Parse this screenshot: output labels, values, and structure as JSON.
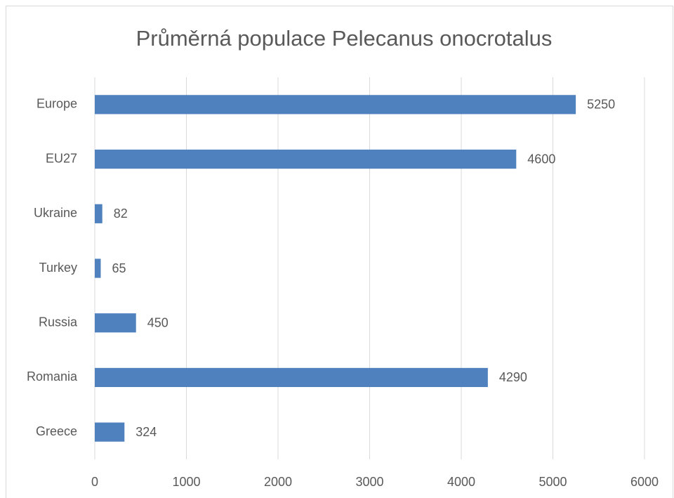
{
  "chart_data": {
    "type": "bar",
    "orientation": "horizontal",
    "title": "Průměrná populace Pelecanus onocrotalus",
    "categories": [
      "Europe",
      "EU27",
      "Ukraine",
      "Turkey",
      "Russia",
      "Romania",
      "Greece"
    ],
    "values": [
      5250,
      4600,
      82,
      65,
      450,
      4290,
      324
    ],
    "color": "#4e81bd",
    "xlim": [
      0,
      6000
    ],
    "xticks": [
      0,
      1000,
      2000,
      3000,
      4000,
      5000,
      6000
    ],
    "grid": true
  }
}
